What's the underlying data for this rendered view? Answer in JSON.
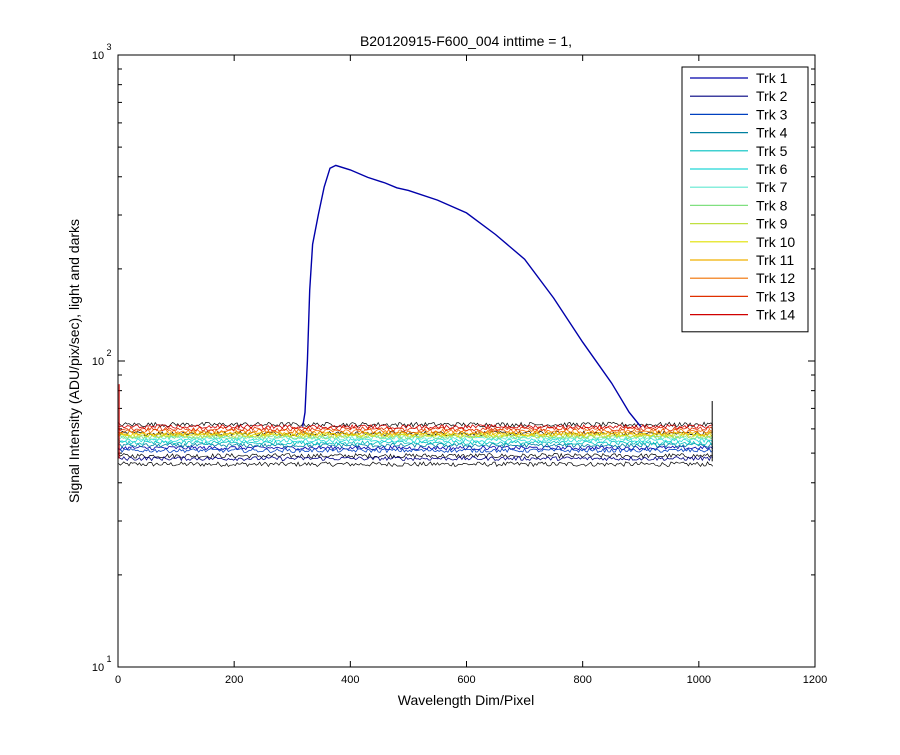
{
  "chart_data": {
    "type": "line",
    "title": "B20120915-F600_004 inttime = 1,",
    "xlabel": "Wavelength Dim/Pixel",
    "ylabel": "Signal Intensity (ADU/pix/sec), light and darks",
    "xlim": [
      0,
      1200
    ],
    "ylim": [
      10,
      1000
    ],
    "yscale": "log",
    "grid": false,
    "legend_position": "top-right",
    "x_ticks": [
      "0",
      "200",
      "400",
      "600",
      "800",
      "1000",
      "1200"
    ],
    "y_ticks": [
      {
        "value": 10,
        "base": "10",
        "exp": "1"
      },
      {
        "value": 100,
        "base": "10",
        "exp": "2"
      },
      {
        "value": 1000,
        "base": "10",
        "exp": "3"
      }
    ],
    "x_range_data": [
      1,
      1024
    ],
    "series": [
      {
        "name": "Trk 1",
        "color": "#0000AA",
        "baseline": 52
      },
      {
        "name": "Trk 2",
        "color": "#000080",
        "baseline": 48
      },
      {
        "name": "Trk 3",
        "color": "#0040C0",
        "baseline": 51
      },
      {
        "name": "Trk 4",
        "color": "#0080A0",
        "baseline": 53
      },
      {
        "name": "Trk 5",
        "color": "#00C0C0",
        "baseline": 54
      },
      {
        "name": "Trk 6",
        "color": "#20D8D8",
        "baseline": 55
      },
      {
        "name": "Trk 7",
        "color": "#60E8D0",
        "baseline": 56
      },
      {
        "name": "Trk 8",
        "color": "#80E080",
        "baseline": 56.5
      },
      {
        "name": "Trk 9",
        "color": "#C0E040",
        "baseline": 57
      },
      {
        "name": "Trk 10",
        "color": "#E0E000",
        "baseline": 57.5
      },
      {
        "name": "Trk 11",
        "color": "#F0B000",
        "baseline": 58
      },
      {
        "name": "Trk 12",
        "color": "#F07000",
        "baseline": 59
      },
      {
        "name": "Trk 13",
        "color": "#E03000",
        "baseline": 60
      },
      {
        "name": "Trk 14",
        "color": "#D00000",
        "baseline": 61
      }
    ],
    "dark_baselines": [
      46,
      49,
      58,
      62
    ],
    "light_trace": {
      "series": "Trk 1",
      "color": "#0000AA",
      "points": [
        [
          318,
          61
        ],
        [
          322,
          68
        ],
        [
          326,
          100
        ],
        [
          330,
          170
        ],
        [
          335,
          240
        ],
        [
          345,
          300
        ],
        [
          355,
          370
        ],
        [
          365,
          425
        ],
        [
          375,
          435
        ],
        [
          400,
          420
        ],
        [
          430,
          400
        ],
        [
          460,
          380
        ],
        [
          480,
          370
        ],
        [
          500,
          360
        ],
        [
          550,
          335
        ],
        [
          600,
          305
        ],
        [
          650,
          260
        ],
        [
          700,
          215
        ],
        [
          750,
          160
        ],
        [
          800,
          115
        ],
        [
          850,
          85
        ],
        [
          880,
          68
        ],
        [
          900,
          61
        ]
      ]
    }
  }
}
